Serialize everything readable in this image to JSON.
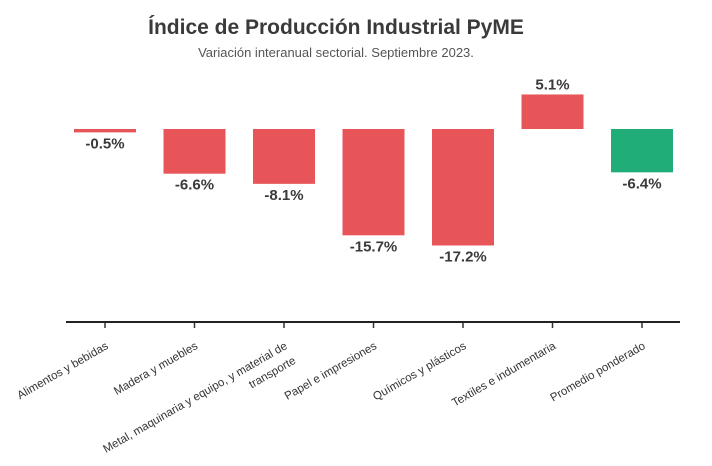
{
  "chart_data": {
    "type": "bar",
    "title": "Índice de Producción Industrial PyME",
    "subtitle": "Variación interanual sectorial. Septiembre 2023.",
    "categories": [
      [
        "Alimentos y bebidas"
      ],
      [
        "Madera y muebles"
      ],
      [
        "Metal, maquinaria y equipo, y material de",
        "transporte"
      ],
      [
        "Papel e impresiones"
      ],
      [
        "Químicos y plásticos"
      ],
      [
        "Textiles e indumentaria"
      ],
      [
        "Promedio ponderado"
      ]
    ],
    "values": [
      -0.5,
      -6.6,
      -8.1,
      -15.7,
      -17.2,
      5.1,
      -6.4
    ],
    "value_labels": [
      "-0.5%",
      "-6.6%",
      "-8.1%",
      "-15.7%",
      "-17.2%",
      "5.1%",
      "-6.4%"
    ],
    "bar_colors": [
      "#e85558",
      "#e85558",
      "#e85558",
      "#e85558",
      "#e85558",
      "#e85558",
      "#20ad78"
    ],
    "xlabel": "",
    "ylabel": "",
    "ylim": [
      -28.5,
      6.5
    ],
    "grid": false,
    "legend": "none"
  }
}
